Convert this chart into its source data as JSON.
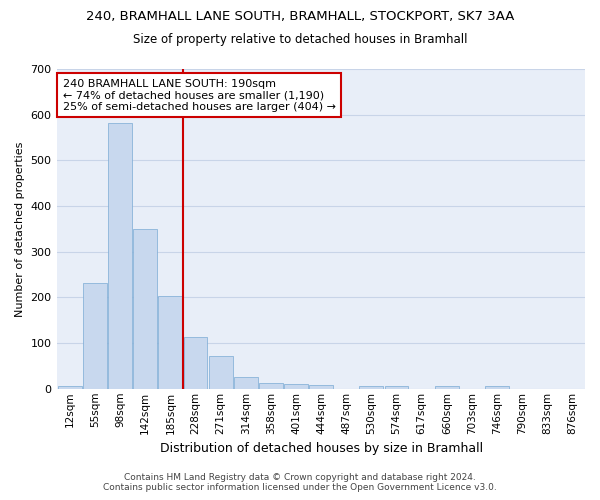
{
  "title_line1": "240, BRAMHALL LANE SOUTH, BRAMHALL, STOCKPORT, SK7 3AA",
  "title_line2": "Size of property relative to detached houses in Bramhall",
  "xlabel": "Distribution of detached houses by size in Bramhall",
  "ylabel": "Number of detached properties",
  "bar_color": "#c8d8ee",
  "bar_edge_color": "#7aaad4",
  "grid_color": "#c8d4e8",
  "background_color": "#e8eef8",
  "vline_color": "#cc0000",
  "vline_x": 4.5,
  "categories": [
    "12sqm",
    "55sqm",
    "98sqm",
    "142sqm",
    "185sqm",
    "228sqm",
    "271sqm",
    "314sqm",
    "358sqm",
    "401sqm",
    "444sqm",
    "487sqm",
    "530sqm",
    "574sqm",
    "617sqm",
    "660sqm",
    "703sqm",
    "746sqm",
    "790sqm",
    "833sqm",
    "876sqm"
  ],
  "bar_heights": [
    5,
    232,
    582,
    350,
    204,
    114,
    72,
    25,
    13,
    10,
    8,
    0,
    5,
    5,
    0,
    5,
    0,
    5,
    0,
    0,
    0
  ],
  "ylim": [
    0,
    700
  ],
  "yticks": [
    0,
    100,
    200,
    300,
    400,
    500,
    600,
    700
  ],
  "annotation_text": "240 BRAMHALL LANE SOUTH: 190sqm\n← 74% of detached houses are smaller (1,190)\n25% of semi-detached houses are larger (404) →",
  "annotation_box_color": "#ffffff",
  "annotation_box_edge_color": "#cc0000",
  "footer_line1": "Contains HM Land Registry data © Crown copyright and database right 2024.",
  "footer_line2": "Contains public sector information licensed under the Open Government Licence v3.0.",
  "figsize": [
    6.0,
    5.0
  ],
  "dpi": 100
}
